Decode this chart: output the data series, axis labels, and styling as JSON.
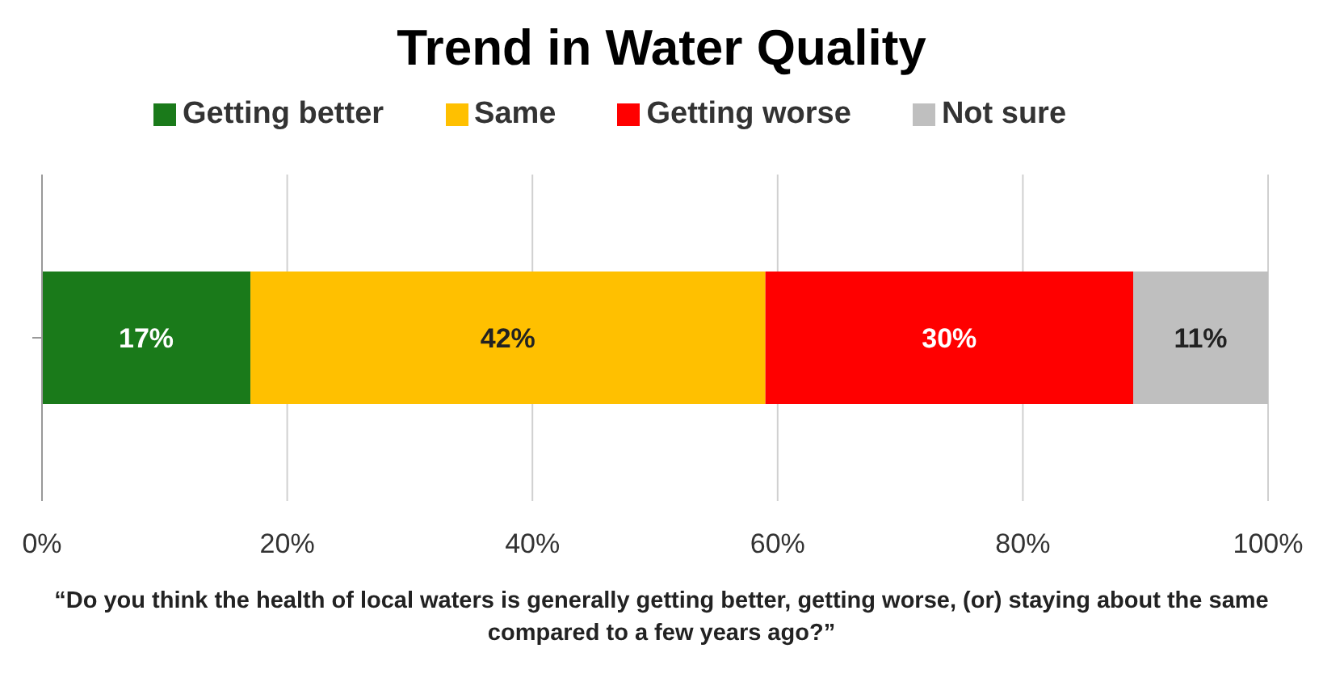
{
  "chart_data": {
    "type": "bar",
    "orientation": "horizontal",
    "stacked": true,
    "title": "Trend in Water Quality",
    "xlabel": "“Do you think the health of local waters is generally getting better, getting worse, (or) staying about the same compared to a few years ago?”",
    "categories": [
      null
    ],
    "series": [
      {
        "name": "Getting better",
        "color": "#1a7a1a",
        "values": [
          17
        ],
        "value_labels": [
          "17%"
        ]
      },
      {
        "name": "Same",
        "color": "#ffc000",
        "values": [
          42
        ],
        "value_labels": [
          "42%"
        ]
      },
      {
        "name": "Getting worse",
        "color": "#ff0000",
        "values": [
          30
        ],
        "value_labels": [
          "30%"
        ]
      },
      {
        "name": "Not sure",
        "color": "#bfbfbf",
        "values": [
          11
        ],
        "value_labels": [
          "11%"
        ]
      }
    ],
    "xlim": [
      0,
      100
    ],
    "xticks": [
      {
        "value": 0,
        "label": "0%"
      },
      {
        "value": 20,
        "label": "20%"
      },
      {
        "value": 40,
        "label": "40%"
      },
      {
        "value": 60,
        "label": "60%"
      },
      {
        "value": 80,
        "label": "80%"
      },
      {
        "value": 100,
        "label": "100%"
      }
    ],
    "grid": "x",
    "legend": "top"
  }
}
